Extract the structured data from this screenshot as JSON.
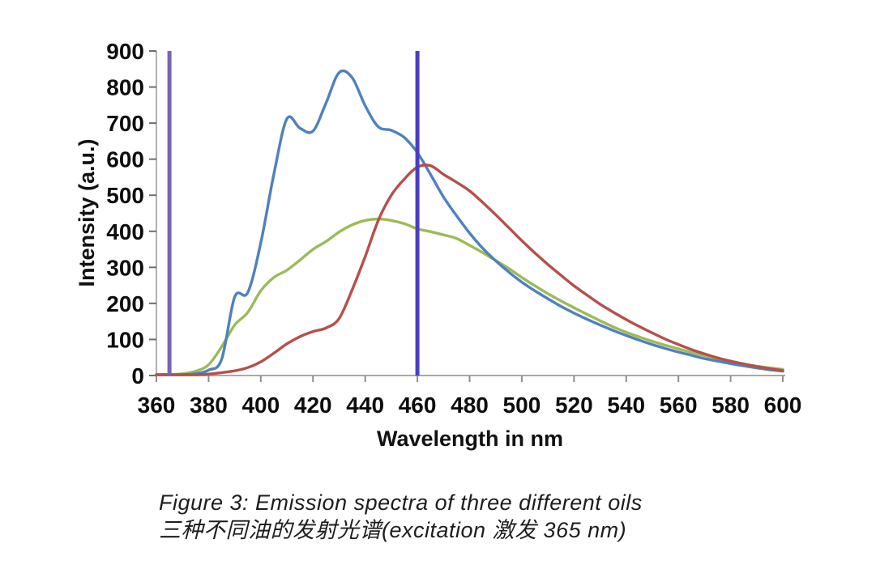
{
  "figure": {
    "background": "#ffffff"
  },
  "caption": {
    "line1": "Figure 3: Emission spectra of three different oils",
    "line2": "三种不同油的发射光谱(excitation 激发 365 nm)"
  },
  "chart_data": {
    "type": "line",
    "title": "",
    "xlabel": "Wavelength in nm",
    "ylabel": "Intensity (a.u.)",
    "xlim": [
      360,
      600
    ],
    "ylim": [
      0,
      900
    ],
    "x_ticks": [
      360,
      380,
      400,
      420,
      440,
      460,
      480,
      500,
      520,
      540,
      560,
      580,
      600
    ],
    "y_ticks": [
      0,
      100,
      200,
      300,
      400,
      500,
      600,
      700,
      800,
      900
    ],
    "grid": false,
    "legend": "none",
    "x": [
      360,
      365,
      370,
      375,
      380,
      385,
      390,
      395,
      400,
      405,
      410,
      415,
      420,
      425,
      430,
      435,
      440,
      445,
      450,
      455,
      460,
      465,
      470,
      475,
      480,
      485,
      490,
      495,
      500,
      505,
      510,
      515,
      520,
      525,
      530,
      535,
      540,
      545,
      550,
      555,
      560,
      565,
      570,
      575,
      580,
      585,
      590,
      595,
      600
    ],
    "series": [
      {
        "name": "oil-green",
        "color": "#9bbb59",
        "values": [
          2,
          3,
          5,
          12,
          30,
          80,
          140,
          175,
          235,
          272,
          292,
          320,
          350,
          372,
          398,
          418,
          430,
          434,
          430,
          421,
          407,
          399,
          390,
          380,
          361,
          341,
          319,
          297,
          272,
          249,
          227,
          207,
          188,
          170,
          152,
          135,
          120,
          107,
          95,
          84,
          74,
          64,
          55,
          47,
          39,
          32,
          26,
          21,
          17
        ]
      },
      {
        "name": "oil-blue",
        "color": "#4f81bd",
        "values": [
          0,
          1,
          2,
          5,
          15,
          45,
          218,
          230,
          368,
          558,
          712,
          686,
          678,
          756,
          840,
          826,
          748,
          690,
          680,
          660,
          618,
          558,
          495,
          443,
          395,
          353,
          318,
          287,
          259,
          235,
          213,
          192,
          173,
          156,
          140,
          125,
          111,
          98,
          86,
          75,
          65,
          56,
          47,
          40,
          33,
          27,
          21,
          16,
          12
        ]
      },
      {
        "name": "oil-red",
        "color": "#b5504c",
        "values": [
          0,
          0,
          1,
          2,
          4,
          8,
          13,
          22,
          38,
          62,
          88,
          108,
          122,
          132,
          158,
          238,
          330,
          430,
          500,
          545,
          578,
          582,
          558,
          536,
          512,
          480,
          446,
          410,
          374,
          340,
          308,
          278,
          249,
          223,
          198,
          176,
          155,
          136,
          118,
          101,
          86,
          72,
          60,
          49,
          40,
          32,
          25,
          19,
          14
        ]
      }
    ],
    "vertical_lines": [
      {
        "name": "excitation-line-365",
        "x": 365,
        "color": "#7a64ae"
      },
      {
        "name": "marker-line-460",
        "x": 460,
        "color": "#4a3ec0"
      }
    ],
    "annotations": []
  }
}
